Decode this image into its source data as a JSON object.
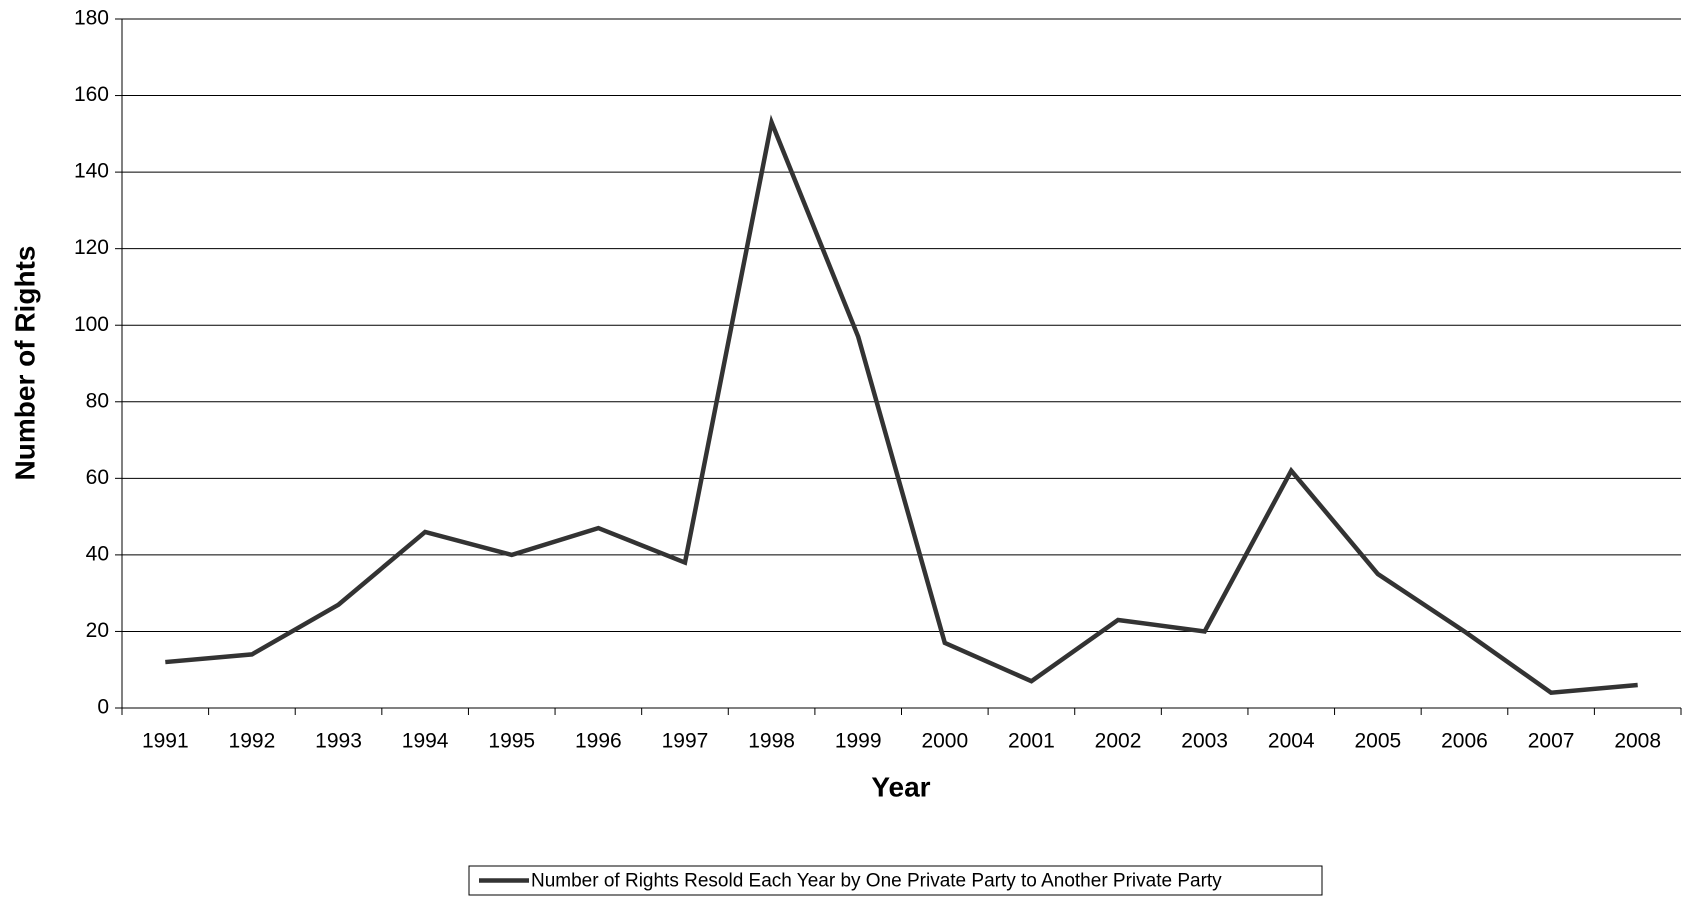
{
  "chart_data": {
    "type": "line",
    "x_label": "Year",
    "y_label": "Number of Rights",
    "categories": [
      "1991",
      "1992",
      "1993",
      "1994",
      "1995",
      "1996",
      "1997",
      "1998",
      "1999",
      "2000",
      "2001",
      "2002",
      "2003",
      "2004",
      "2005",
      "2006",
      "2007",
      "2008"
    ],
    "series": [
      {
        "name": "Number of Rights Resold Each Year by One Private Party to Another Private Party",
        "color": "#333333",
        "values": [
          12,
          14,
          27,
          46,
          40,
          47,
          38,
          153,
          97,
          17,
          7,
          23,
          20,
          62,
          35,
          20,
          4,
          6
        ]
      }
    ],
    "ylim": [
      0,
      180
    ],
    "yticks": [
      0,
      20,
      40,
      60,
      80,
      100,
      120,
      140,
      160,
      180
    ],
    "grid": true,
    "legend": "bottom"
  }
}
